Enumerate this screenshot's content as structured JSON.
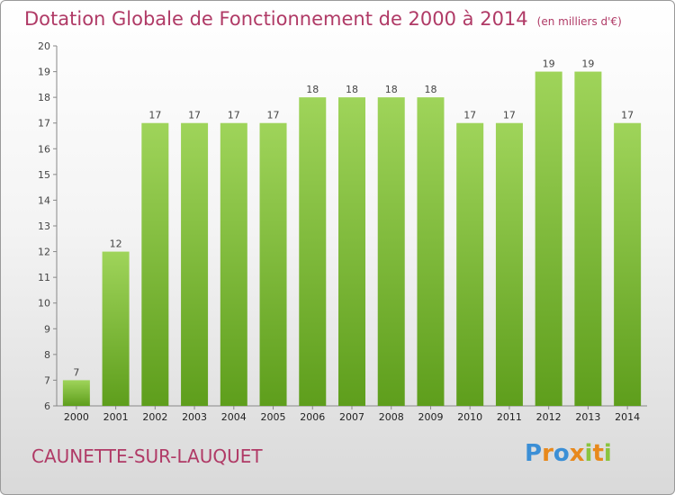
{
  "header": {
    "title": "Dotation Globale de Fonctionnement de 2000 à 2014",
    "units": "(en milliers d'€)"
  },
  "footer": {
    "town": "CAUNETTE-SUR-LAUQUET",
    "logo": {
      "letters": [
        "P",
        "r",
        "o",
        "x",
        "i",
        "t",
        "i"
      ],
      "colors": [
        "#3b8fd6",
        "#e8891c",
        "#3b8fd6",
        "#e8891c",
        "#8ac43f",
        "#e8891c",
        "#8ac43f"
      ]
    }
  },
  "colors": {
    "title": "#b03a66",
    "bar_top": "#9fd45a",
    "bar_bottom": "#5e9e1c"
  },
  "chart_data": {
    "type": "bar",
    "title": "Dotation Globale de Fonctionnement de 2000 à 2014",
    "subtitle": "(en milliers d'€)",
    "categories": [
      "2000",
      "2001",
      "2002",
      "2003",
      "2004",
      "2005",
      "2006",
      "2007",
      "2008",
      "2009",
      "2010",
      "2011",
      "2012",
      "2013",
      "2014"
    ],
    "values": [
      7,
      12,
      17,
      17,
      17,
      17,
      18,
      18,
      18,
      18,
      17,
      17,
      19,
      19,
      17
    ],
    "ylim": [
      6,
      20
    ],
    "yticks": [
      6,
      7,
      8,
      9,
      10,
      11,
      12,
      13,
      14,
      15,
      16,
      17,
      18,
      19,
      20
    ],
    "grid": false,
    "legend": "none"
  }
}
